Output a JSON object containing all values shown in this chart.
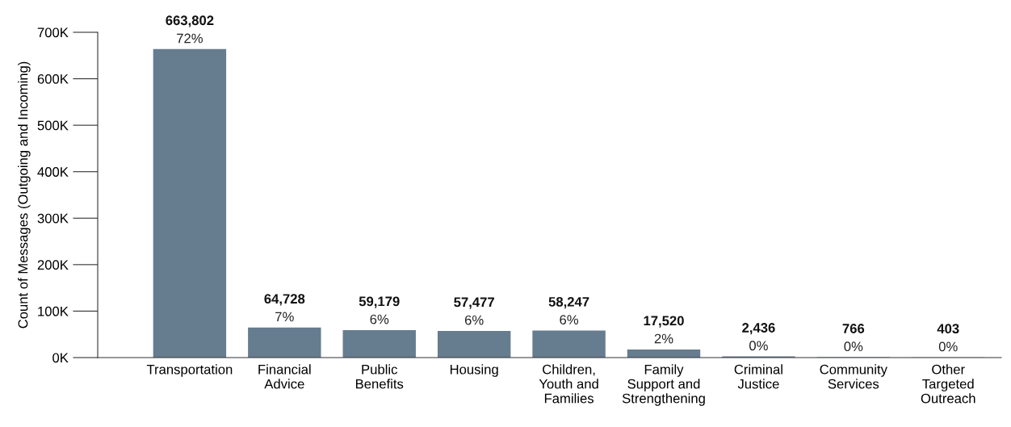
{
  "chart_data": {
    "type": "bar",
    "ylabel": "Count of Messages (Outgoing and Incoming)",
    "categories": [
      "Transportation",
      "Financial\nAdvice",
      "Public\nBenefits",
      "Housing",
      "Children,\nYouth and\nFamilies",
      "Family\nSupport and\nStrengthening",
      "Criminal\nJustice",
      "Community\nServices",
      "Other\nTargeted\nOutreach"
    ],
    "values": [
      663802,
      64728,
      59179,
      57477,
      58247,
      17520,
      2436,
      766,
      403
    ],
    "value_labels": [
      "663,802\n72%",
      "64,728\n7%",
      "59,179\n6%",
      "57,477\n6%",
      "58,247\n6%",
      "17,520\n2%",
      "2,436\n0%",
      "766\n0%",
      "403\n0%"
    ],
    "color": "#667c8f",
    "ylim": [
      0,
      700000
    ],
    "yticks": [
      {
        "value": 0,
        "label": "0K"
      },
      {
        "value": 100000,
        "label": "100K"
      },
      {
        "value": 200000,
        "label": "200K"
      },
      {
        "value": 300000,
        "label": "300K"
      },
      {
        "value": 400000,
        "label": "400K"
      },
      {
        "value": 500000,
        "label": "500K"
      },
      {
        "value": 600000,
        "label": "600K"
      },
      {
        "value": 700000,
        "label": "700K"
      }
    ],
    "grid": false,
    "legend": false
  }
}
